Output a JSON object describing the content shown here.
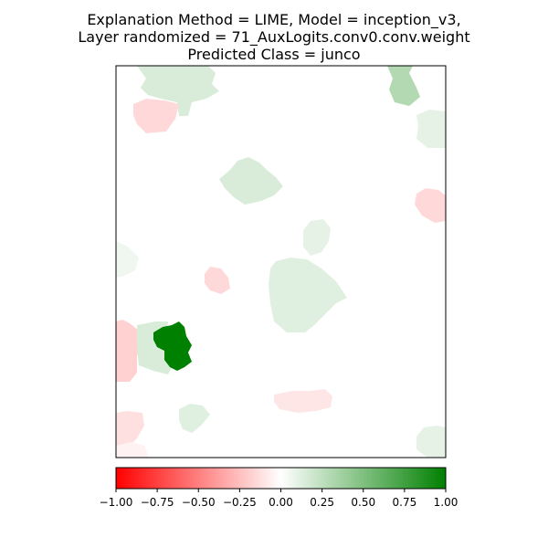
{
  "chart_data": {
    "type": "heatmap",
    "title_lines": [
      "Explanation Method = LIME, Model = inception_v3,",
      "Layer randomized = 71_AuxLogits.conv0.conv.weight",
      "Predicted Class = junco"
    ],
    "xlabel": "",
    "ylabel": "",
    "grid": false,
    "axes_ticks": false,
    "colorbar": {
      "orientation": "horizontal",
      "vmin": -1.0,
      "vmax": 1.0,
      "ticks": [
        -1.0,
        -0.75,
        -0.5,
        -0.25,
        0.0,
        0.25,
        0.5,
        0.75,
        1.0
      ],
      "tick_labels": [
        "−1.00",
        "−0.75",
        "−0.50",
        "−0.25",
        "0.00",
        "0.25",
        "0.50",
        "0.75",
        "1.00"
      ],
      "colors": {
        "negative": "#ff0000",
        "neutral": "#ffffff",
        "positive": "#008000"
      }
    },
    "segments": [
      {
        "id": "top-center-green",
        "value": 0.15
      },
      {
        "id": "top-left-red",
        "value": -0.15
      },
      {
        "id": "top-right-green",
        "value": 0.3
      },
      {
        "id": "right-upper-green",
        "value": 0.1
      },
      {
        "id": "right-red",
        "value": -0.15
      },
      {
        "id": "center-upper-green",
        "value": 0.15
      },
      {
        "id": "left-edge-green",
        "value": 0.06
      },
      {
        "id": "small-center-green",
        "value": 0.1
      },
      {
        "id": "small-red",
        "value": -0.15
      },
      {
        "id": "center-green",
        "value": 0.12
      },
      {
        "id": "left-red",
        "value": -0.18
      },
      {
        "id": "left-lightgreen",
        "value": 0.15
      },
      {
        "id": "strong-green",
        "value": 1.0
      },
      {
        "id": "bottom-center-red",
        "value": -0.1
      },
      {
        "id": "bottom-left-red",
        "value": -0.12
      },
      {
        "id": "bottom-green",
        "value": 0.12
      },
      {
        "id": "bottom-right-green",
        "value": 0.1
      },
      {
        "id": "bottom-left-red2",
        "value": -0.05
      }
    ]
  }
}
